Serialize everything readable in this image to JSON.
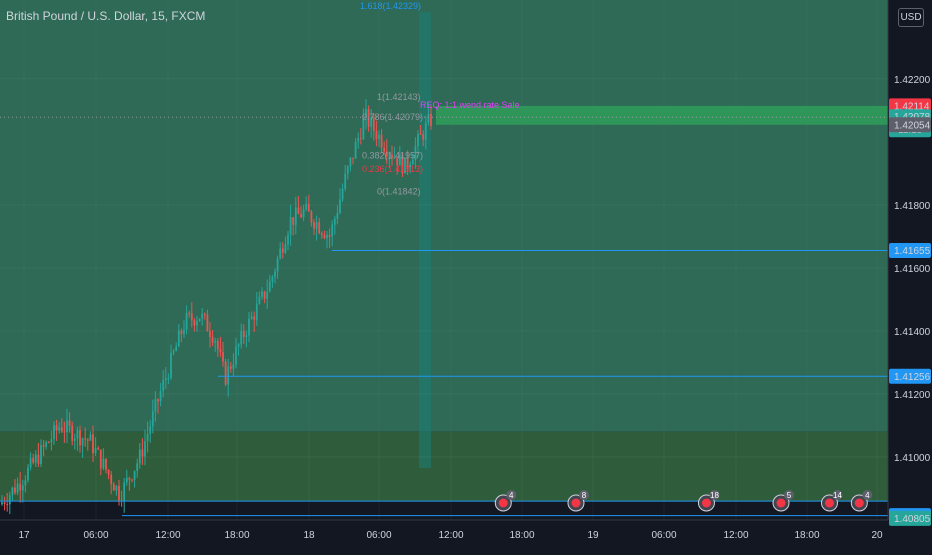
{
  "chart_data": {
    "type": "candlestick",
    "title": "British Pound / U.S. Dollar, 15, FXCM",
    "currency": "USD",
    "y_range": [
      1.408,
      1.4245
    ],
    "y_ticks": [
      {
        "value": 1.422,
        "label": "1.42200"
      },
      {
        "value": 1.418,
        "label": "1.41800"
      },
      {
        "value": 1.416,
        "label": "1.41600"
      },
      {
        "value": 1.414,
        "label": "1.41400"
      },
      {
        "value": 1.412,
        "label": "1.41200"
      },
      {
        "value": 1.41,
        "label": "1.41000"
      }
    ],
    "x_ticks": [
      "17",
      "06:00",
      "12:00",
      "18:00",
      "18",
      "06:00",
      "12:00",
      "18:00",
      "19",
      "06:00",
      "12:00",
      "18:00",
      "20"
    ],
    "price_badges": [
      {
        "value": 1.42114,
        "label": "1.42114",
        "color": "#f23645"
      },
      {
        "value": 1.42078,
        "label": "1.42078",
        "color": "#26a69a",
        "sub": "11:15"
      },
      {
        "value": 1.42054,
        "label": "1.42054",
        "color": "#5d606b"
      },
      {
        "value": 1.41655,
        "label": "1.41655",
        "color": "#2196f3"
      },
      {
        "value": 1.41256,
        "label": "1.41256",
        "color": "#2196f3"
      },
      {
        "value": 1.40814,
        "label": "1.40814",
        "color": "#2196f3"
      },
      {
        "value": 1.40805,
        "label": "1.40805",
        "color": "#26a69a"
      }
    ],
    "horizontal_lines": [
      1.41655,
      1.41256,
      1.40814,
      1.4086
    ],
    "zones": [
      {
        "from": 1.4245,
        "to": 1.4108,
        "color": "#2e6a55"
      },
      {
        "from": 1.4108,
        "to": 1.4086,
        "color": "#2f5d3b"
      }
    ],
    "fib_labels": [
      {
        "text": "1.618(1.42329)",
        "value": 1.42329,
        "color": "#2196f3"
      },
      {
        "text": "1(1.42143)",
        "value": 1.42143,
        "color": "#9598a1"
      },
      {
        "text": "0.786(1.42079)",
        "value": 1.42079,
        "color": "#9598a1"
      },
      {
        "text": "0.382(1.41957)",
        "value": 1.41957,
        "color": "#9598a1"
      },
      {
        "text": "0.236(1.41913)",
        "value": 1.41913,
        "color": "#f23645"
      },
      {
        "text": "0(1.41842)",
        "value": 1.41842,
        "color": "#9598a1"
      }
    ],
    "annotation": "REQ: 1:1 wend rate Sale",
    "events": [
      {
        "x_frac": 0.54,
        "count": "4"
      },
      {
        "x_frac": 0.618,
        "count": "8"
      },
      {
        "x_frac": 0.758,
        "count": "18"
      },
      {
        "x_frac": 0.838,
        "count": "5"
      },
      {
        "x_frac": 0.89,
        "count": "14"
      },
      {
        "x_frac": 0.922,
        "count": "4"
      }
    ]
  }
}
